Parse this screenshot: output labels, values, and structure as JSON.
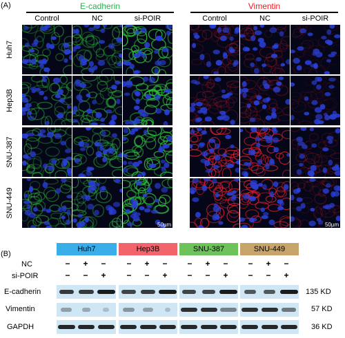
{
  "panel_a": {
    "label": "(A)",
    "groups": [
      {
        "title": "E-cadherin",
        "title_color": "#22b14c",
        "stain_color": "#2fbf3a",
        "scale": "50µm"
      },
      {
        "title": "Vimentin",
        "title_color": "#e8191f",
        "stain_color": "#e0202e",
        "scale": "50µm"
      }
    ],
    "columns": [
      "Control",
      "NC",
      "si-POIR"
    ],
    "rows": [
      "Huh7",
      "Hep3B",
      "SNU-387",
      "SNU-449"
    ]
  },
  "panel_b": {
    "label": "(B)",
    "cell_lines": [
      {
        "name": "Huh7",
        "color": "#3aaee8"
      },
      {
        "name": "Hep3B",
        "color": "#f2636b"
      },
      {
        "name": "SNU-387",
        "color": "#6ec25c"
      },
      {
        "name": "SNU-449",
        "color": "#c7a46a"
      }
    ],
    "conditions": [
      {
        "label": "NC",
        "signs": [
          "−",
          "+",
          "−"
        ]
      },
      {
        "label": "si-POIR",
        "signs": [
          "−",
          "−",
          "+"
        ]
      }
    ],
    "blots": [
      {
        "name": "E-cadherin",
        "kd": "135 KD"
      },
      {
        "name": "Vimentin",
        "kd": "57 KD"
      },
      {
        "name": "GAPDH",
        "kd": "36 KD"
      }
    ]
  }
}
